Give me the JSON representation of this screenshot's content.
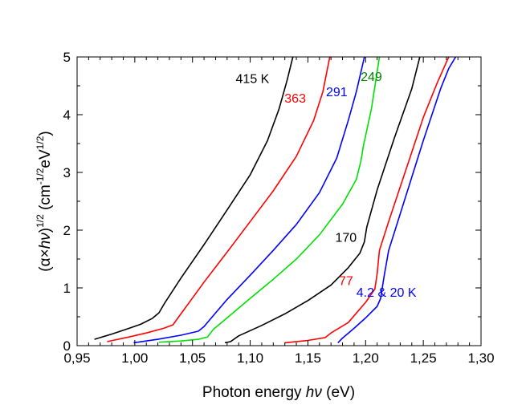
{
  "chart_data": {
    "type": "line",
    "title": "",
    "xlabel": "Photon energy hν (eV)",
    "xlabel_parts": {
      "prefix": "Photon energy ",
      "italic": "hν",
      "suffix": " (eV)"
    },
    "ylabel": "(α×hν)^1/2 (cm^-1/2 eV^1/2)",
    "ylabel_parts": {
      "open": "(α×",
      "italic": "hν",
      "close": ")",
      "sup1": "1/2",
      "unit_open": " (cm",
      "sup2": "-1/2",
      "unit_mid": "eV",
      "sup3": "1/2",
      "unit_close": ")"
    },
    "xlim": [
      0.95,
      1.3
    ],
    "ylim": [
      0,
      5
    ],
    "x_ticks": [
      0.95,
      1.0,
      1.05,
      1.1,
      1.15,
      1.2,
      1.25,
      1.3
    ],
    "x_tick_labels": [
      "0,95",
      "1,00",
      "1,05",
      "1,10",
      "1,15",
      "1,20",
      "1,25",
      "1,30"
    ],
    "y_ticks": [
      0,
      1,
      2,
      3,
      4,
      5
    ],
    "y_tick_labels": [
      "0",
      "1",
      "2",
      "3",
      "4",
      "5"
    ],
    "grid": false,
    "series": [
      {
        "name": "415 K",
        "label": "415 K",
        "color": "#000000",
        "label_color": "#000000",
        "label_pos": [
          1.102,
          4.55
        ],
        "x": [
          0.965,
          0.98,
          0.995,
          1.005,
          1.015,
          1.021,
          1.026,
          1.04,
          1.06,
          1.08,
          1.1,
          1.115,
          1.125,
          1.132,
          1.137
        ],
        "y": [
          0.11,
          0.2,
          0.3,
          0.37,
          0.47,
          0.57,
          0.74,
          1.17,
          1.75,
          2.35,
          2.96,
          3.55,
          4.1,
          4.6,
          5.0
        ]
      },
      {
        "name": "363 K",
        "label": "363",
        "color": "#ff0000",
        "label_color": "#ff0000",
        "label_pos": [
          1.139,
          4.21
        ],
        "x": [
          0.976,
          0.995,
          1.01,
          1.025,
          1.033,
          1.04,
          1.06,
          1.08,
          1.1,
          1.12,
          1.14,
          1.155,
          1.163,
          1.169
        ],
        "y": [
          0.07,
          0.15,
          0.22,
          0.3,
          0.36,
          0.55,
          1.1,
          1.62,
          2.15,
          2.68,
          3.28,
          3.9,
          4.4,
          5.0
        ]
      },
      {
        "name": "291 K",
        "label": "291",
        "color": "#0000ff",
        "label_color": "#0000ff",
        "label_pos": [
          1.175,
          4.32
        ],
        "x": [
          0.999,
          1.02,
          1.04,
          1.055,
          1.06,
          1.065,
          1.08,
          1.1,
          1.12,
          1.14,
          1.16,
          1.175,
          1.185,
          1.192,
          1.199
        ],
        "y": [
          0.05,
          0.11,
          0.18,
          0.25,
          0.33,
          0.45,
          0.8,
          1.22,
          1.65,
          2.1,
          2.65,
          3.25,
          3.9,
          4.4,
          5.0
        ]
      },
      {
        "name": "249 K",
        "label": "249",
        "color": "#00e000",
        "label_color": "#008000",
        "label_pos": [
          1.205,
          4.58
        ],
        "x": [
          1.021,
          1.04,
          1.055,
          1.063,
          1.068,
          1.08,
          1.1,
          1.12,
          1.14,
          1.16,
          1.18,
          1.192,
          1.196,
          1.198,
          1.205,
          1.212
        ],
        "y": [
          0.06,
          0.08,
          0.11,
          0.15,
          0.28,
          0.48,
          0.82,
          1.15,
          1.5,
          1.92,
          2.45,
          2.88,
          3.2,
          3.45,
          4.1,
          5.0
        ]
      },
      {
        "name": "170 K",
        "label": "170",
        "color": "#000000",
        "label_color": "#000000",
        "label_pos": [
          1.183,
          1.8
        ],
        "x": [
          1.078,
          1.083,
          1.09,
          1.11,
          1.13,
          1.15,
          1.17,
          1.185,
          1.195,
          1.199,
          1.201,
          1.21,
          1.225,
          1.24,
          1.247
        ],
        "y": [
          0.05,
          0.07,
          0.17,
          0.35,
          0.55,
          0.78,
          1.05,
          1.35,
          1.6,
          1.8,
          2.05,
          2.7,
          3.6,
          4.45,
          5.0
        ]
      },
      {
        "name": "77 K",
        "label": "77",
        "color": "#ff0000",
        "label_color": "#ff0000",
        "label_pos": [
          1.183,
          1.05
        ],
        "x": [
          1.13,
          1.15,
          1.165,
          1.17,
          1.175,
          1.185,
          1.2,
          1.208,
          1.21,
          1.212,
          1.22,
          1.235,
          1.25,
          1.262,
          1.272
        ],
        "y": [
          0.05,
          0.09,
          0.14,
          0.22,
          0.28,
          0.4,
          0.75,
          0.98,
          1.25,
          1.65,
          2.15,
          3.05,
          3.95,
          4.55,
          5.0
        ]
      },
      {
        "name": "4.2 & 20 K",
        "label": "4.2 & 20 K",
        "color": "#0000ff",
        "label_color": "#0000ff",
        "label_pos": [
          1.218,
          0.85
        ],
        "x": [
          1.176,
          1.18,
          1.19,
          1.2,
          1.21,
          1.213,
          1.216,
          1.22,
          1.235,
          1.25,
          1.265,
          1.272,
          1.278
        ],
        "y": [
          0.05,
          0.13,
          0.3,
          0.48,
          0.68,
          0.82,
          1.2,
          1.65,
          2.6,
          3.55,
          4.45,
          4.8,
          5.0
        ]
      }
    ]
  }
}
